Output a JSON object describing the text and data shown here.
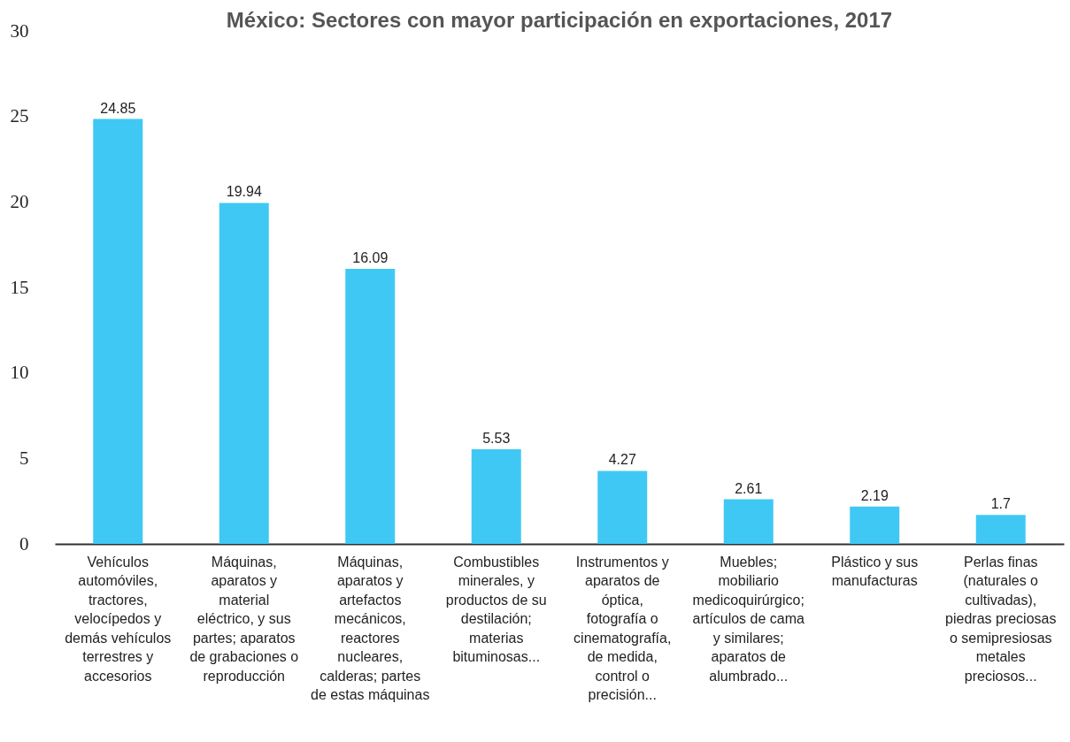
{
  "chart_data": {
    "type": "bar",
    "title": "México: Sectores con mayor participación en exportaciones, 2017",
    "categories": [
      "Vehículos automóviles, tractores, velocípedos y demás vehículos terrestres y accesorios",
      "Máquinas, aparatos y material eléctrico, y sus partes; aparatos de grabaciones o reproducción",
      "Máquinas, aparatos y artefactos mecánicos, reactores nucleares, calderas; partes de estas máquinas",
      "Combustibles minerales, y productos de su destilación; materias bituminosas...",
      "Instrumentos y aparatos de óptica, fotografía o cinematografía, de medida, control o precisión...",
      "Muebles; mobiliario medicoquirúrgico; artículos de cama y similares; aparatos de alumbrado...",
      "Plástico y sus manufacturas",
      "Perlas finas (naturales o cultivadas), piedras preciosas o semipresiosas metales preciosos..."
    ],
    "values": [
      24.85,
      19.94,
      16.09,
      5.53,
      4.27,
      2.61,
      2.19,
      1.7
    ],
    "color": "#40c8f4",
    "ylim": [
      0,
      30
    ],
    "yticks": [
      0,
      5,
      10,
      15,
      20,
      25,
      30
    ],
    "grid": false,
    "data_labels": true
  }
}
